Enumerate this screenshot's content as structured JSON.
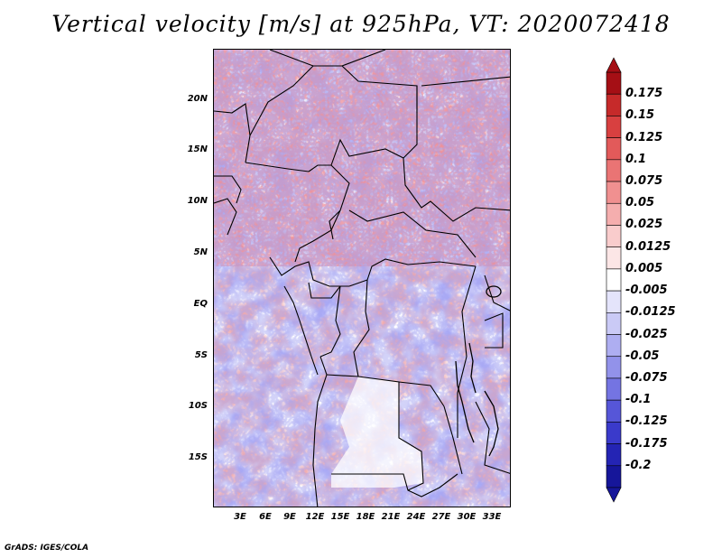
{
  "title": "Vertical velocity [m/s] at 925hPa, VT: 2020072418",
  "footer": "GrADS: IGES/COLA",
  "y_axis_labels": [
    "20N",
    "15N",
    "10N",
    "5N",
    "EQ",
    "5S",
    "10S",
    "15S"
  ],
  "x_axis_labels": [
    "3E",
    "6E",
    "9E",
    "12E",
    "15E",
    "18E",
    "21E",
    "24E",
    "27E",
    "30E",
    "33E"
  ],
  "colorbar": {
    "labels": [
      "0.175",
      "0.15",
      "0.125",
      "0.1",
      "0.075",
      "0.05",
      "0.025",
      "0.0125",
      "0.005",
      "-0.005",
      "-0.0125",
      "-0.025",
      "-0.05",
      "-0.075",
      "-0.1",
      "-0.125",
      "-0.175",
      "-0.2"
    ],
    "colors": [
      "#a50f15",
      "#c62a2a",
      "#d84040",
      "#e25a5a",
      "#ea7474",
      "#f09090",
      "#f5aeae",
      "#f9cccc",
      "#fce6e6",
      "#ffffff",
      "#e4e4fb",
      "#cacaf6",
      "#aeaef1",
      "#9292ea",
      "#7474e2",
      "#5656d8",
      "#3a3acb",
      "#2424b4",
      "#16169a"
    ],
    "top_arrow_color": "#a50f15",
    "bottom_arrow_color": "#16169a"
  },
  "colors": {
    "positive": "#e06060",
    "negative": "#6a6ae6",
    "border": "#000000"
  }
}
